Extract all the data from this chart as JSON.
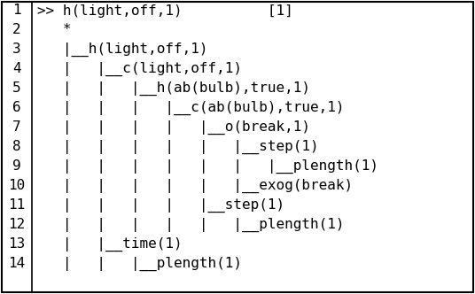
{
  "lines": [
    ">> h(light,off,1)          [1]",
    "   *",
    "   |__h(light,off,1)",
    "   |   |__c(light,off,1)",
    "   |   |   |__h(ab(bulb),true,1)",
    "   |   |   |   |__c(ab(bulb),true,1)",
    "   |   |   |   |   |__o(break,1)",
    "   |   |   |   |   |   |__step(1)",
    "   |   |   |   |   |   |   |__plength(1)",
    "   |   |   |   |   |   |__exog(break)",
    "   |   |   |   |   |__step(1)",
    "   |   |   |   |   |   |__plength(1)",
    "   |   |__time(1)",
    "   |   |   |__plength(1)"
  ],
  "line_numbers": [
    "1",
    "2",
    "3",
    "4",
    "5",
    "6",
    "7",
    "8",
    "9",
    "10",
    "11",
    "12",
    "13",
    "14"
  ],
  "bg_color": "#ffffff",
  "text_color": "#000000",
  "border_color": "#000000",
  "font_size": 11.5,
  "fig_width": 5.36,
  "fig_height": 3.32
}
